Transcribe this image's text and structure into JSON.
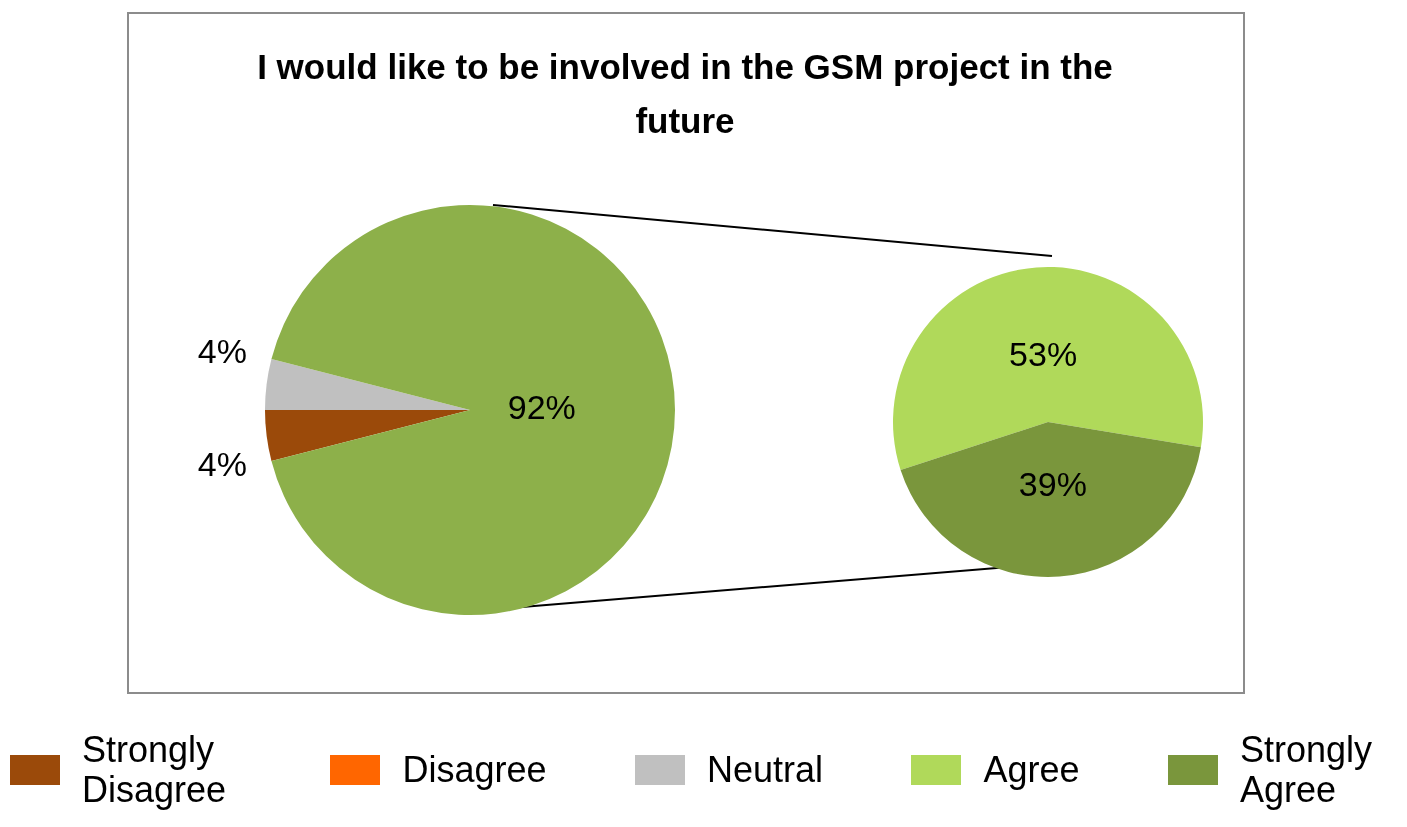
{
  "chart_data": [
    {
      "type": "pie",
      "title": "I would like to be involved in the GSM project in the future",
      "categories": [
        "Strongly Disagree",
        "Disagree",
        "Neutral",
        null
      ],
      "values": [
        4,
        0,
        4,
        92
      ],
      "colors": [
        "#9b4a0a",
        "#ff6600",
        "#c0c0c0",
        "#8db04a"
      ],
      "value_labels": [
        "4%",
        null,
        "4%",
        "92%"
      ],
      "legend": "bottom"
    },
    {
      "type": "pie",
      "categories": [
        "Agree",
        "Strongly Agree"
      ],
      "values": [
        53,
        39
      ],
      "colors": [
        "#b0d95a",
        "#7a963c"
      ],
      "value_labels": [
        "53%",
        "39%"
      ],
      "legend": "bottom"
    }
  ]
}
